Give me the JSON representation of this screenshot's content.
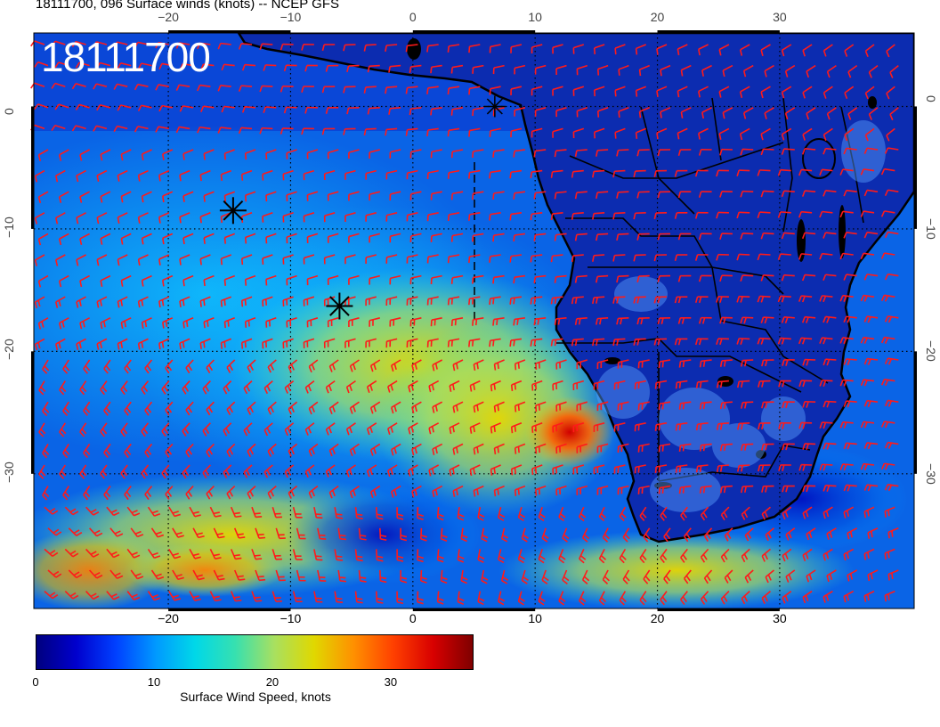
{
  "header": {
    "title": "18111700, 096 Surface winds (knots) -- NCEP GFS",
    "datestamp": "18111700"
  },
  "map": {
    "extent": {
      "lon": [
        -31,
        41
      ],
      "lat": [
        -41,
        6
      ]
    },
    "lon_ticks": [
      -20,
      -10,
      0,
      10,
      20,
      30
    ],
    "lat_ticks": [
      0,
      -10,
      -20,
      -30
    ],
    "lon_tick_labels": [
      "−20",
      "−10",
      "0",
      "10",
      "20",
      "30"
    ],
    "lat_tick_labels": [
      "0",
      "−10",
      "−20",
      "−30"
    ],
    "grid": "dotted",
    "barb_color": "#ff1a1a",
    "markers": [
      {
        "symbol": "asterisk",
        "lon": -14.7,
        "lat": -8.5
      },
      {
        "symbol": "asterisk",
        "lon": -6.0,
        "lat": -16.3
      },
      {
        "symbol": "asterisk",
        "lon": 6.7,
        "lat": 0.0
      }
    ]
  },
  "colorbar": {
    "label": "Surface Wind Speed, knots",
    "ticks": [
      0,
      10,
      20,
      30
    ],
    "tick_labels": [
      "0",
      "10",
      "20",
      "30"
    ],
    "range": [
      0,
      37
    ],
    "colors": [
      "#00007f",
      "#0000cd",
      "#0040ff",
      "#0099ff",
      "#00d8e8",
      "#36e0b0",
      "#a8e060",
      "#e0d800",
      "#ff9000",
      "#ff4000",
      "#d80000",
      "#7f0000"
    ]
  }
}
